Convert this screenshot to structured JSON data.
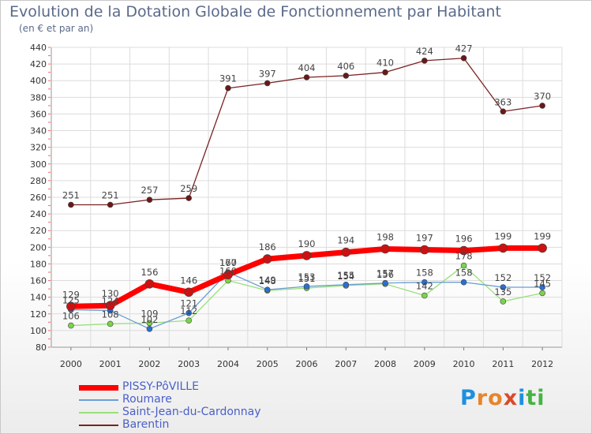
{
  "title": "Evolution de la Dotation Globale de Fonctionnement par Habitant",
  "subtitle": "(en € et par an)",
  "logo": {
    "text": "Proxiti",
    "colors": [
      "#1f8fe0",
      "#e8842a",
      "#e8842a",
      "#d94a2a",
      "#1f8fe0",
      "#46b344",
      "#46b344"
    ]
  },
  "chart_data": {
    "type": "line",
    "title": "Evolution de la Dotation Globale de Fonctionnement par Habitant",
    "ylabel": "(en € et par an)",
    "xlabel": "",
    "x": [
      "2000",
      "2001",
      "2002",
      "2003",
      "2004",
      "2005",
      "2006",
      "2007",
      "2008",
      "2009",
      "2010",
      "2011",
      "2012"
    ],
    "yticks": [
      "80",
      "100",
      "120",
      "140",
      "160",
      "180",
      "200",
      "220",
      "240",
      "260",
      "280",
      "300",
      "320",
      "340",
      "360",
      "380",
      "400",
      "420",
      "440"
    ],
    "ylim": [
      80,
      440
    ],
    "series": [
      {
        "name": "PISSY-PôVILLE",
        "color": "#ff0000",
        "values": [
          129,
          130,
          156,
          146,
          167,
          186,
          190,
          194,
          198,
          197,
          196,
          199,
          199
        ]
      },
      {
        "name": "Roumare",
        "color": "#6a9fd4",
        "values": [
          125,
          124,
          102,
          121,
          170,
          149,
          153,
          155,
          157,
          158,
          158,
          152,
          152
        ]
      },
      {
        "name": "Saint-Jean-du-Cardonnay",
        "color": "#99e07a",
        "values": [
          106,
          108,
          109,
          112,
          160,
          148,
          151,
          154,
          156,
          142,
          178,
          135,
          145
        ]
      },
      {
        "name": "Barentin",
        "color": "#7a2222",
        "values": [
          251,
          251,
          257,
          259,
          391,
          397,
          404,
          406,
          410,
          424,
          427,
          363,
          370
        ]
      }
    ]
  }
}
